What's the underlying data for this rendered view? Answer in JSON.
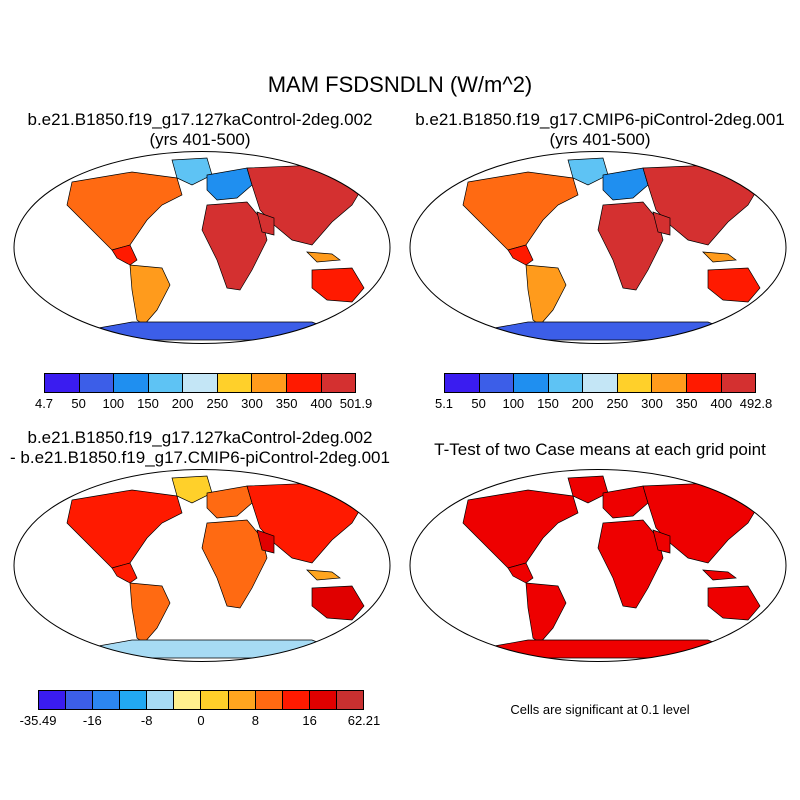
{
  "title": "MAM FSDSNDLN (W/m^2)",
  "panels": {
    "top_left": {
      "case": "b.e21.B1850.f19_g17.127kaControl-2deg.002",
      "years": "(yrs 401-500)",
      "colorbar": {
        "colors": [
          "#3a1cf0",
          "#3c5ee8",
          "#1f8ff0",
          "#5ec3f4",
          "#c4e6f6",
          "#ffd02a",
          "#ff9b1c",
          "#ff1a00",
          "#d43030"
        ],
        "labels": [
          "4.7",
          "50",
          "100",
          "150",
          "200",
          "250",
          "300",
          "350",
          "400",
          "501.9"
        ]
      }
    },
    "top_right": {
      "case": "b.e21.B1850.f19_g17.CMIP6-piControl-2deg.001",
      "years": "(yrs 401-500)",
      "colorbar": {
        "colors": [
          "#3a1cf0",
          "#3c5ee8",
          "#1f8ff0",
          "#5ec3f4",
          "#c4e6f6",
          "#ffd02a",
          "#ff9b1c",
          "#ff1a00",
          "#d43030"
        ],
        "labels": [
          "5.1",
          "50",
          "100",
          "150",
          "200",
          "250",
          "300",
          "350",
          "400",
          "492.8"
        ]
      }
    },
    "bottom_left": {
      "line1": "b.e21.B1850.f19_g17.127kaControl-2deg.002",
      "line2": "- b.e21.B1850.f19_g17.CMIP6-piControl-2deg.001",
      "colorbar": {
        "colors": [
          "#3a1cf0",
          "#3c5ee8",
          "#2c86f0",
          "#22a8f2",
          "#a7dbf4",
          "#fff08e",
          "#ffd02a",
          "#ffa51f",
          "#ff6a12",
          "#ff1a00",
          "#e00000",
          "#c83030"
        ],
        "labels": [
          "-35.49",
          "",
          "-16",
          "",
          "-8",
          "",
          "0",
          "",
          "8",
          "",
          "16",
          "",
          "62.21"
        ]
      }
    },
    "bottom_right": {
      "title": "T-Test of two Case means at each grid point",
      "note": "Cells are significant at 0.1 level"
    }
  }
}
